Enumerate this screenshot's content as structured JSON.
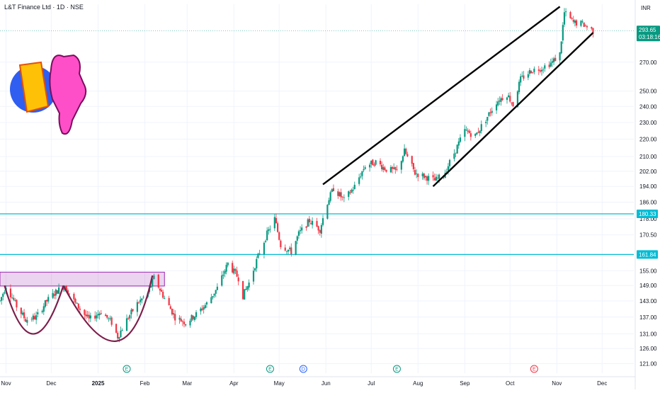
{
  "header": {
    "title": "L&T Finance Ltd · 1D · NSE",
    "currency": "INR"
  },
  "price_tags": [
    {
      "value": "293.65",
      "sub": "03:18:16",
      "color": "#089981",
      "role": "last"
    },
    {
      "value": "180.33",
      "color": "#00bcd4",
      "role": "level"
    },
    {
      "value": "161.84",
      "color": "#00bcd4",
      "role": "level"
    }
  ],
  "event_markers": [
    {
      "label": "E",
      "date": "2025-01-20",
      "color": "#089981"
    },
    {
      "label": "E",
      "date": "2025-04-25",
      "color": "#089981"
    },
    {
      "label": "D",
      "date": "2025-05-17",
      "color": "#2962ff"
    },
    {
      "label": "E",
      "date": "2025-07-18",
      "color": "#089981"
    },
    {
      "label": "E",
      "date": "2025-10-17",
      "color": "#f23645"
    }
  ],
  "chart_data": {
    "type": "candlestick",
    "scale": "log",
    "ylim": [
      118,
      315
    ],
    "xlim": [
      "2024-10-28",
      "2025-12-22"
    ],
    "x_ticks": [
      {
        "label": "Nov",
        "date": "2024-11-01"
      },
      {
        "label": "Dec",
        "date": "2024-12-01"
      },
      {
        "label": "2025",
        "date": "2025-01-01"
      },
      {
        "label": "Feb",
        "date": "2025-02-01"
      },
      {
        "label": "Mar",
        "date": "2025-03-01"
      },
      {
        "label": "Apr",
        "date": "2025-04-01"
      },
      {
        "label": "May",
        "date": "2025-05-01"
      },
      {
        "label": "Jun",
        "date": "2025-06-01"
      },
      {
        "label": "Jul",
        "date": "2025-07-01"
      },
      {
        "label": "Aug",
        "date": "2025-08-01"
      },
      {
        "label": "Sep",
        "date": "2025-09-01"
      },
      {
        "label": "Oct",
        "date": "2025-10-01"
      },
      {
        "label": "Nov",
        "date": "2025-11-01"
      },
      {
        "label": "Dec",
        "date": "2025-12-01"
      }
    ],
    "y_ticks": [
      "270.00",
      "250.00",
      "240.00",
      "230.00",
      "220.00",
      "210.00",
      "202.00",
      "194.00",
      "186.00",
      "178.00",
      "170.50",
      "155.00",
      "149.00",
      "143.00",
      "137.00",
      "131.00",
      "126.00",
      "121.00"
    ],
    "horizontal_levels": [
      180.33,
      161.84
    ],
    "last_price": 293.65,
    "rectangle": {
      "x": [
        "2024-10-28",
        "2025-02-14"
      ],
      "y": [
        148.8,
        154.4
      ],
      "color": "#9c27b0"
    },
    "cup_arcs": [
      {
        "from": [
          "2024-10-31",
          149
        ],
        "bottom": [
          "2024-11-19",
          131
        ],
        "to": [
          "2024-12-09",
          149
        ]
      },
      {
        "from": [
          "2024-12-09",
          149
        ],
        "bottom": [
          "2025-01-13",
          128.5
        ],
        "to": [
          "2025-02-06",
          153
        ]
      }
    ],
    "trendlines": [
      {
        "from": [
          "2025-05-30",
          195
        ],
        "to": [
          "2025-11-03",
          313
        ]
      },
      {
        "from": [
          "2025-08-11",
          194
        ],
        "to": [
          "2025-11-25",
          292
        ]
      }
    ],
    "anchors": [
      [
        "2024-10-28",
        143
      ],
      [
        "2024-11-01",
        149
      ],
      [
        "2024-11-08",
        141
      ],
      [
        "2024-11-14",
        136
      ],
      [
        "2024-11-21",
        137
      ],
      [
        "2024-11-28",
        143
      ],
      [
        "2024-12-05",
        147
      ],
      [
        "2024-12-10",
        149
      ],
      [
        "2024-12-17",
        142
      ],
      [
        "2024-12-26",
        136
      ],
      [
        "2025-01-03",
        139
      ],
      [
        "2025-01-10",
        135
      ],
      [
        "2025-01-14",
        130
      ],
      [
        "2025-01-20",
        136
      ],
      [
        "2025-01-27",
        142
      ],
      [
        "2025-02-03",
        146
      ],
      [
        "2025-02-07",
        152
      ],
      [
        "2025-02-14",
        144
      ],
      [
        "2025-02-21",
        137
      ],
      [
        "2025-02-28",
        135
      ],
      [
        "2025-03-07",
        138
      ],
      [
        "2025-03-14",
        142
      ],
      [
        "2025-03-21",
        148
      ],
      [
        "2025-03-28",
        158
      ],
      [
        "2025-04-04",
        152
      ],
      [
        "2025-04-07",
        145
      ],
      [
        "2025-04-11",
        150
      ],
      [
        "2025-04-17",
        161
      ],
      [
        "2025-04-23",
        171
      ],
      [
        "2025-04-28",
        178
      ],
      [
        "2025-05-02",
        166
      ],
      [
        "2025-05-09",
        163
      ],
      [
        "2025-05-14",
        171
      ],
      [
        "2025-05-21",
        177
      ],
      [
        "2025-05-28",
        173
      ],
      [
        "2025-06-02",
        186
      ],
      [
        "2025-06-06",
        193
      ],
      [
        "2025-06-13",
        187
      ],
      [
        "2025-06-20",
        194
      ],
      [
        "2025-06-27",
        205
      ],
      [
        "2025-07-04",
        207
      ],
      [
        "2025-07-11",
        203
      ],
      [
        "2025-07-18",
        202
      ],
      [
        "2025-07-23",
        213
      ],
      [
        "2025-07-30",
        201
      ],
      [
        "2025-08-06",
        199
      ],
      [
        "2025-08-12",
        197
      ],
      [
        "2025-08-18",
        200
      ],
      [
        "2025-08-25",
        212
      ],
      [
        "2025-09-01",
        225
      ],
      [
        "2025-09-08",
        222
      ],
      [
        "2025-09-15",
        232
      ],
      [
        "2025-09-22",
        243
      ],
      [
        "2025-09-29",
        248
      ],
      [
        "2025-10-03",
        241
      ],
      [
        "2025-10-08",
        258
      ],
      [
        "2025-10-15",
        264
      ],
      [
        "2025-10-22",
        266
      ],
      [
        "2025-10-29",
        270
      ],
      [
        "2025-11-03",
        276
      ],
      [
        "2025-11-06",
        308
      ],
      [
        "2025-11-12",
        300
      ],
      [
        "2025-11-18",
        299
      ],
      [
        "2025-11-25",
        293.65
      ]
    ]
  }
}
